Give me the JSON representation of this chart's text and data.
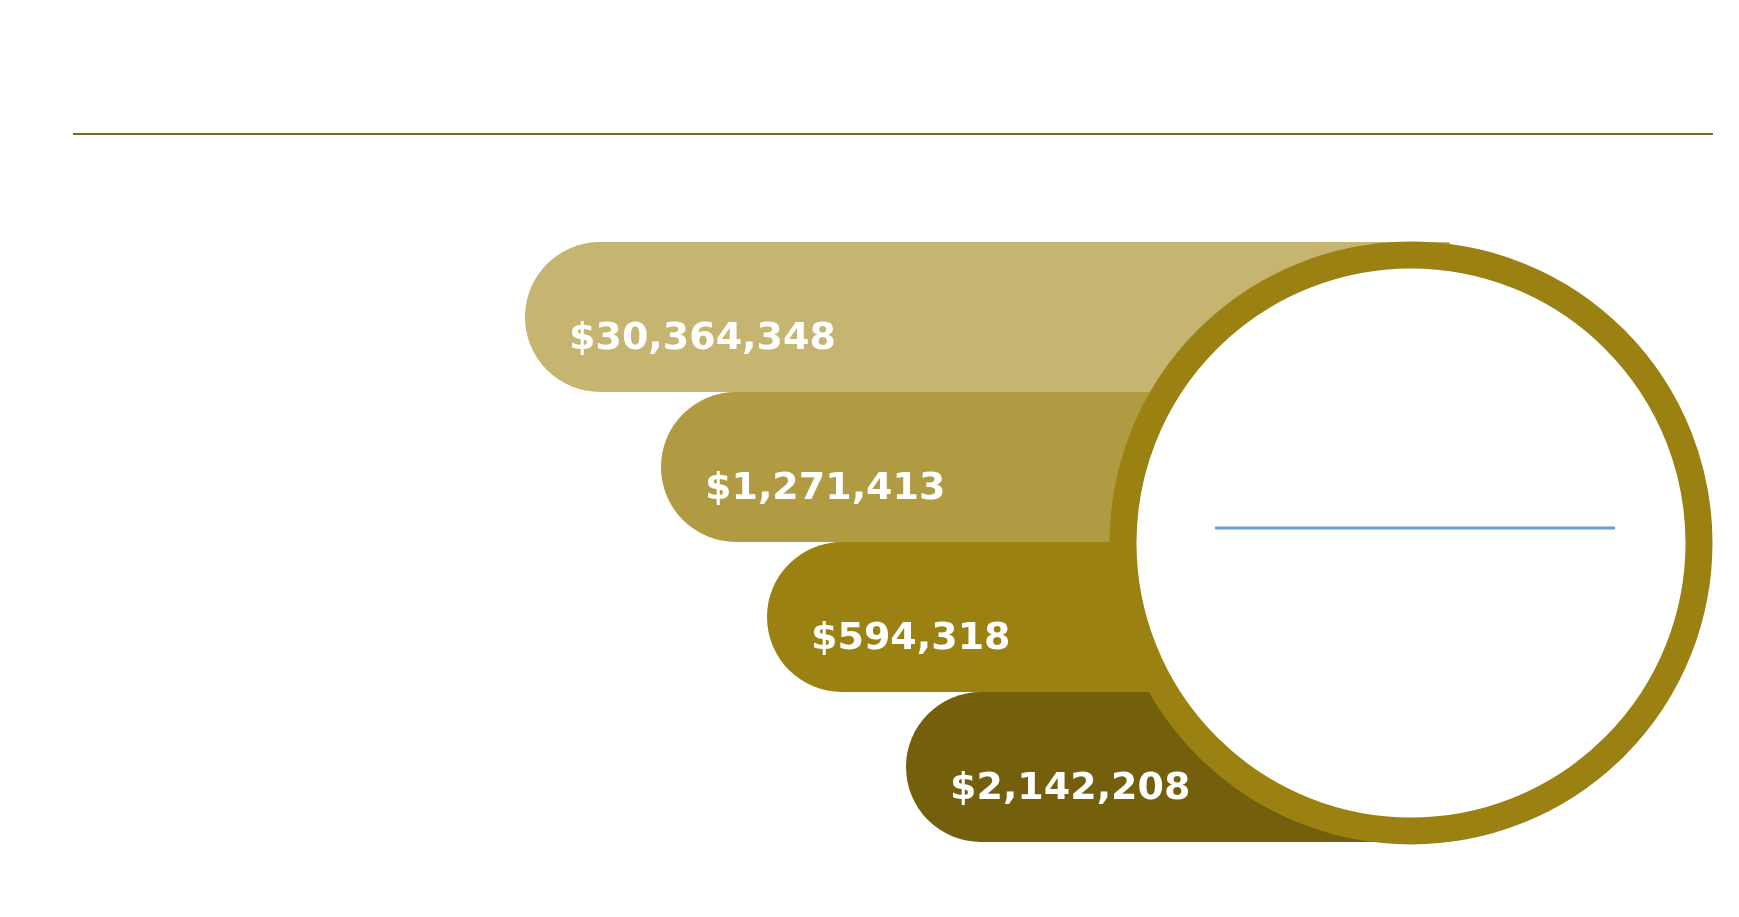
{
  "chart_data": {
    "type": "other",
    "categories": [
      null,
      null,
      null,
      null
    ],
    "values": [
      30364348,
      1271413,
      594318,
      2142208
    ],
    "value_labels": [
      "$30,364,348",
      "$1,271,413",
      "$594,318",
      "$2,142,208"
    ],
    "colors": [
      "#c5b571",
      "#b09b42",
      "#9b8012",
      "#745f0d"
    ]
  }
}
